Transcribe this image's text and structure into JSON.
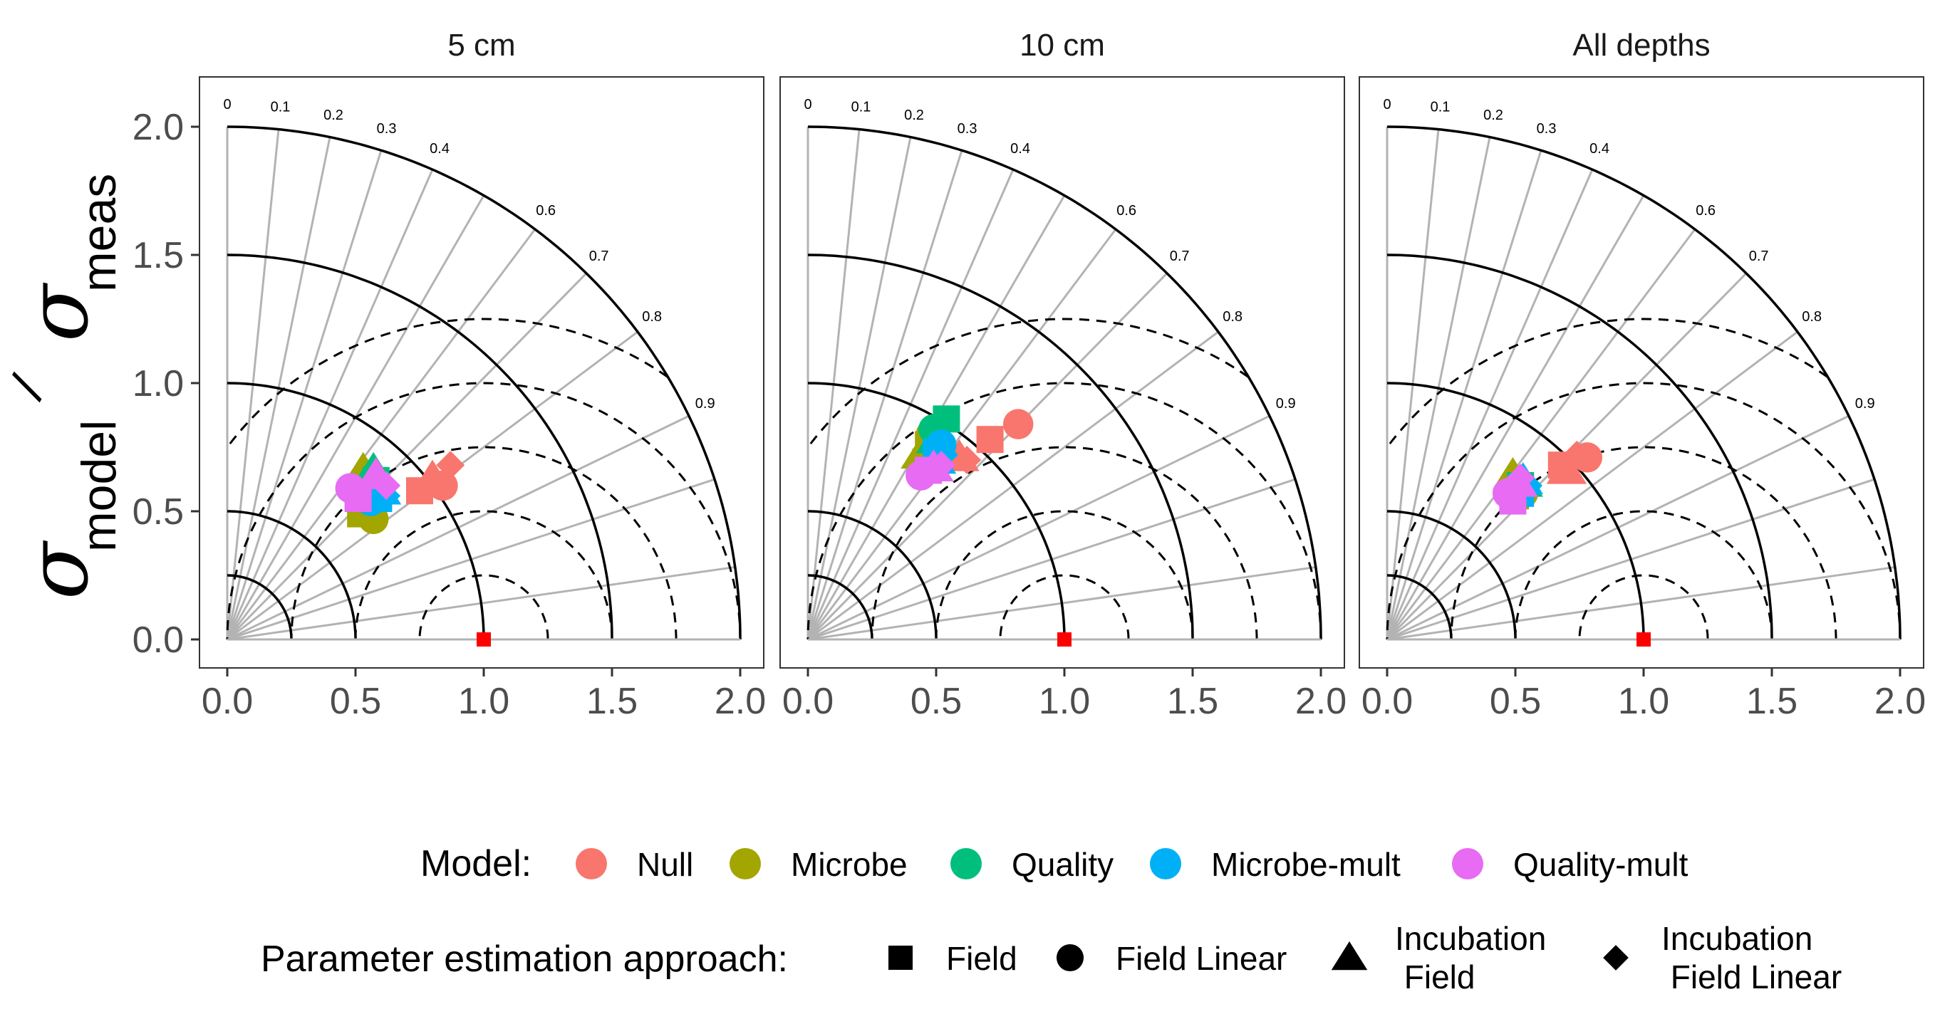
{
  "figure": {
    "y_label_sigma": "σ",
    "y_label_model": "model",
    "y_label_meas": "meas",
    "y_label_slash": "/"
  },
  "chart_data": {
    "type": "scatter",
    "subtype": "taylor-diagram",
    "panels": [
      {
        "title": "5 cm",
        "points": [
          {
            "model": "Null",
            "approach": "Field",
            "x": 0.75,
            "y": 0.58
          },
          {
            "model": "Null",
            "approach": "Field Linear",
            "x": 0.84,
            "y": 0.6
          },
          {
            "model": "Null",
            "approach": "Incubation Field",
            "x": 0.8,
            "y": 0.63
          },
          {
            "model": "Null",
            "approach": "Incubation Field Linear",
            "x": 0.87,
            "y": 0.68
          },
          {
            "model": "Microbe",
            "approach": "Field",
            "x": 0.52,
            "y": 0.49
          },
          {
            "model": "Microbe",
            "approach": "Field Linear",
            "x": 0.57,
            "y": 0.47
          },
          {
            "model": "Microbe",
            "approach": "Incubation Field",
            "x": 0.53,
            "y": 0.66
          },
          {
            "model": "Microbe",
            "approach": "Incubation Field Linear",
            "x": 0.5,
            "y": 0.55
          },
          {
            "model": "Quality",
            "approach": "Field",
            "x": 0.58,
            "y": 0.62
          },
          {
            "model": "Quality",
            "approach": "Field Linear",
            "x": 0.55,
            "y": 0.58
          },
          {
            "model": "Quality",
            "approach": "Incubation Field",
            "x": 0.57,
            "y": 0.66
          },
          {
            "model": "Quality",
            "approach": "Incubation Field Linear",
            "x": 0.6,
            "y": 0.6
          },
          {
            "model": "Microbe-mult",
            "approach": "Field",
            "x": 0.59,
            "y": 0.55
          },
          {
            "model": "Microbe-mult",
            "approach": "Field Linear",
            "x": 0.56,
            "y": 0.54
          },
          {
            "model": "Microbe-mult",
            "approach": "Incubation Field",
            "x": 0.6,
            "y": 0.58
          },
          {
            "model": "Microbe-mult",
            "approach": "Incubation Field Linear",
            "x": 0.62,
            "y": 0.56
          },
          {
            "model": "Quality-mult",
            "approach": "Field",
            "x": 0.51,
            "y": 0.55
          },
          {
            "model": "Quality-mult",
            "approach": "Field Linear",
            "x": 0.48,
            "y": 0.59
          },
          {
            "model": "Quality-mult",
            "approach": "Incubation Field",
            "x": 0.58,
            "y": 0.64
          },
          {
            "model": "Quality-mult",
            "approach": "Incubation Field Linear",
            "x": 0.62,
            "y": 0.6
          }
        ]
      },
      {
        "title": "10 cm",
        "points": [
          {
            "model": "Null",
            "approach": "Field",
            "x": 0.71,
            "y": 0.78
          },
          {
            "model": "Null",
            "approach": "Field Linear",
            "x": 0.82,
            "y": 0.84
          },
          {
            "model": "Null",
            "approach": "Incubation Field",
            "x": 0.59,
            "y": 0.71
          },
          {
            "model": "Null",
            "approach": "Incubation Field Linear",
            "x": 0.62,
            "y": 0.7
          },
          {
            "model": "Microbe",
            "approach": "Field",
            "x": 0.47,
            "y": 0.76
          },
          {
            "model": "Microbe",
            "approach": "Field Linear",
            "x": 0.48,
            "y": 0.8
          },
          {
            "model": "Microbe",
            "approach": "Incubation Field",
            "x": 0.44,
            "y": 0.72
          },
          {
            "model": "Microbe",
            "approach": "Incubation Field Linear",
            "x": 0.46,
            "y": 0.74
          },
          {
            "model": "Quality",
            "approach": "Field",
            "x": 0.54,
            "y": 0.86
          },
          {
            "model": "Quality",
            "approach": "Field Linear",
            "x": 0.49,
            "y": 0.82
          },
          {
            "model": "Quality",
            "approach": "Incubation Field",
            "x": 0.5,
            "y": 0.78
          },
          {
            "model": "Quality",
            "approach": "Incubation Field Linear",
            "x": 0.52,
            "y": 0.76
          },
          {
            "model": "Microbe-mult",
            "approach": "Field",
            "x": 0.5,
            "y": 0.73
          },
          {
            "model": "Microbe-mult",
            "approach": "Field Linear",
            "x": 0.52,
            "y": 0.76
          },
          {
            "model": "Microbe-mult",
            "approach": "Incubation Field",
            "x": 0.5,
            "y": 0.7
          },
          {
            "model": "Microbe-mult",
            "approach": "Incubation Field Linear",
            "x": 0.53,
            "y": 0.72
          },
          {
            "model": "Quality-mult",
            "approach": "Field",
            "x": 0.47,
            "y": 0.66
          },
          {
            "model": "Quality-mult",
            "approach": "Field Linear",
            "x": 0.44,
            "y": 0.64
          },
          {
            "model": "Quality-mult",
            "approach": "Incubation Field",
            "x": 0.49,
            "y": 0.67
          },
          {
            "model": "Quality-mult",
            "approach": "Incubation Field Linear",
            "x": 0.52,
            "y": 0.68
          }
        ]
      },
      {
        "title": "All depths",
        "points": [
          {
            "model": "Null",
            "approach": "Field",
            "x": 0.68,
            "y": 0.68
          },
          {
            "model": "Null",
            "approach": "Field Linear",
            "x": 0.78,
            "y": 0.71
          },
          {
            "model": "Null",
            "approach": "Incubation Field",
            "x": 0.7,
            "y": 0.66
          },
          {
            "model": "Null",
            "approach": "Incubation Field Linear",
            "x": 0.74,
            "y": 0.72
          },
          {
            "model": "Microbe",
            "approach": "Field",
            "x": 0.5,
            "y": 0.56
          },
          {
            "model": "Microbe",
            "approach": "Field Linear",
            "x": 0.53,
            "y": 0.57
          },
          {
            "model": "Microbe",
            "approach": "Incubation Field",
            "x": 0.49,
            "y": 0.64
          },
          {
            "model": "Microbe",
            "approach": "Incubation Field Linear",
            "x": 0.5,
            "y": 0.6
          },
          {
            "model": "Quality",
            "approach": "Field",
            "x": 0.52,
            "y": 0.6
          },
          {
            "model": "Quality",
            "approach": "Field Linear",
            "x": 0.5,
            "y": 0.58
          },
          {
            "model": "Quality",
            "approach": "Incubation Field",
            "x": 0.53,
            "y": 0.61
          },
          {
            "model": "Quality",
            "approach": "Incubation Field Linear",
            "x": 0.54,
            "y": 0.59
          },
          {
            "model": "Microbe-mult",
            "approach": "Field",
            "x": 0.52,
            "y": 0.57
          },
          {
            "model": "Microbe-mult",
            "approach": "Field Linear",
            "x": 0.51,
            "y": 0.59
          },
          {
            "model": "Microbe-mult",
            "approach": "Incubation Field",
            "x": 0.53,
            "y": 0.62
          },
          {
            "model": "Microbe-mult",
            "approach": "Incubation Field Linear",
            "x": 0.55,
            "y": 0.6
          },
          {
            "model": "Quality-mult",
            "approach": "Field",
            "x": 0.49,
            "y": 0.54
          },
          {
            "model": "Quality-mult",
            "approach": "Field Linear",
            "x": 0.47,
            "y": 0.57
          },
          {
            "model": "Quality-mult",
            "approach": "Incubation Field",
            "x": 0.51,
            "y": 0.61
          },
          {
            "model": "Quality-mult",
            "approach": "Incubation Field Linear",
            "x": 0.52,
            "y": 0.63
          }
        ]
      }
    ],
    "reference_point": {
      "x": 1.0,
      "y": 0.0,
      "color": "#ff0000"
    },
    "xlim": [
      0,
      2
    ],
    "ylim": [
      0,
      2
    ],
    "x_ticks": [
      "0.0",
      "0.5",
      "1.0",
      "1.5",
      "2.0"
    ],
    "y_ticks": [
      "0.0",
      "0.5",
      "1.0",
      "1.5",
      "2.0"
    ],
    "correlation_labels": [
      "0",
      "0.1",
      "0.2",
      "0.3",
      "0.4",
      "0.6",
      "0.7",
      "0.8",
      "0.9"
    ],
    "sd_arcs": [
      0.25,
      0.5,
      1.0,
      1.5,
      2.0
    ],
    "rms_arcs": [
      0.25,
      0.5,
      0.75,
      1.0,
      1.25
    ],
    "grid": true,
    "legend": {
      "placement": "bottom",
      "model_title": "Model:",
      "models": [
        {
          "name": "Null",
          "color": "#f8766d"
        },
        {
          "name": "Microbe",
          "color": "#a3a500"
        },
        {
          "name": "Quality",
          "color": "#00bf7d"
        },
        {
          "name": "Microbe-mult",
          "color": "#00b0f6"
        },
        {
          "name": "Quality-mult",
          "color": "#e76bf3"
        }
      ],
      "approach_title": "Parameter estimation approach:",
      "approaches": [
        {
          "name": "Field",
          "shape": "square",
          "lines": [
            "Field"
          ]
        },
        {
          "name": "Field Linear",
          "shape": "circle",
          "lines": [
            "Field Linear"
          ]
        },
        {
          "name": "Incubation Field",
          "shape": "triangle",
          "lines": [
            "Incubation",
            " Field"
          ]
        },
        {
          "name": "Incubation Field Linear",
          "shape": "diamond",
          "lines": [
            "Incubation",
            " Field Linear"
          ]
        }
      ]
    }
  }
}
